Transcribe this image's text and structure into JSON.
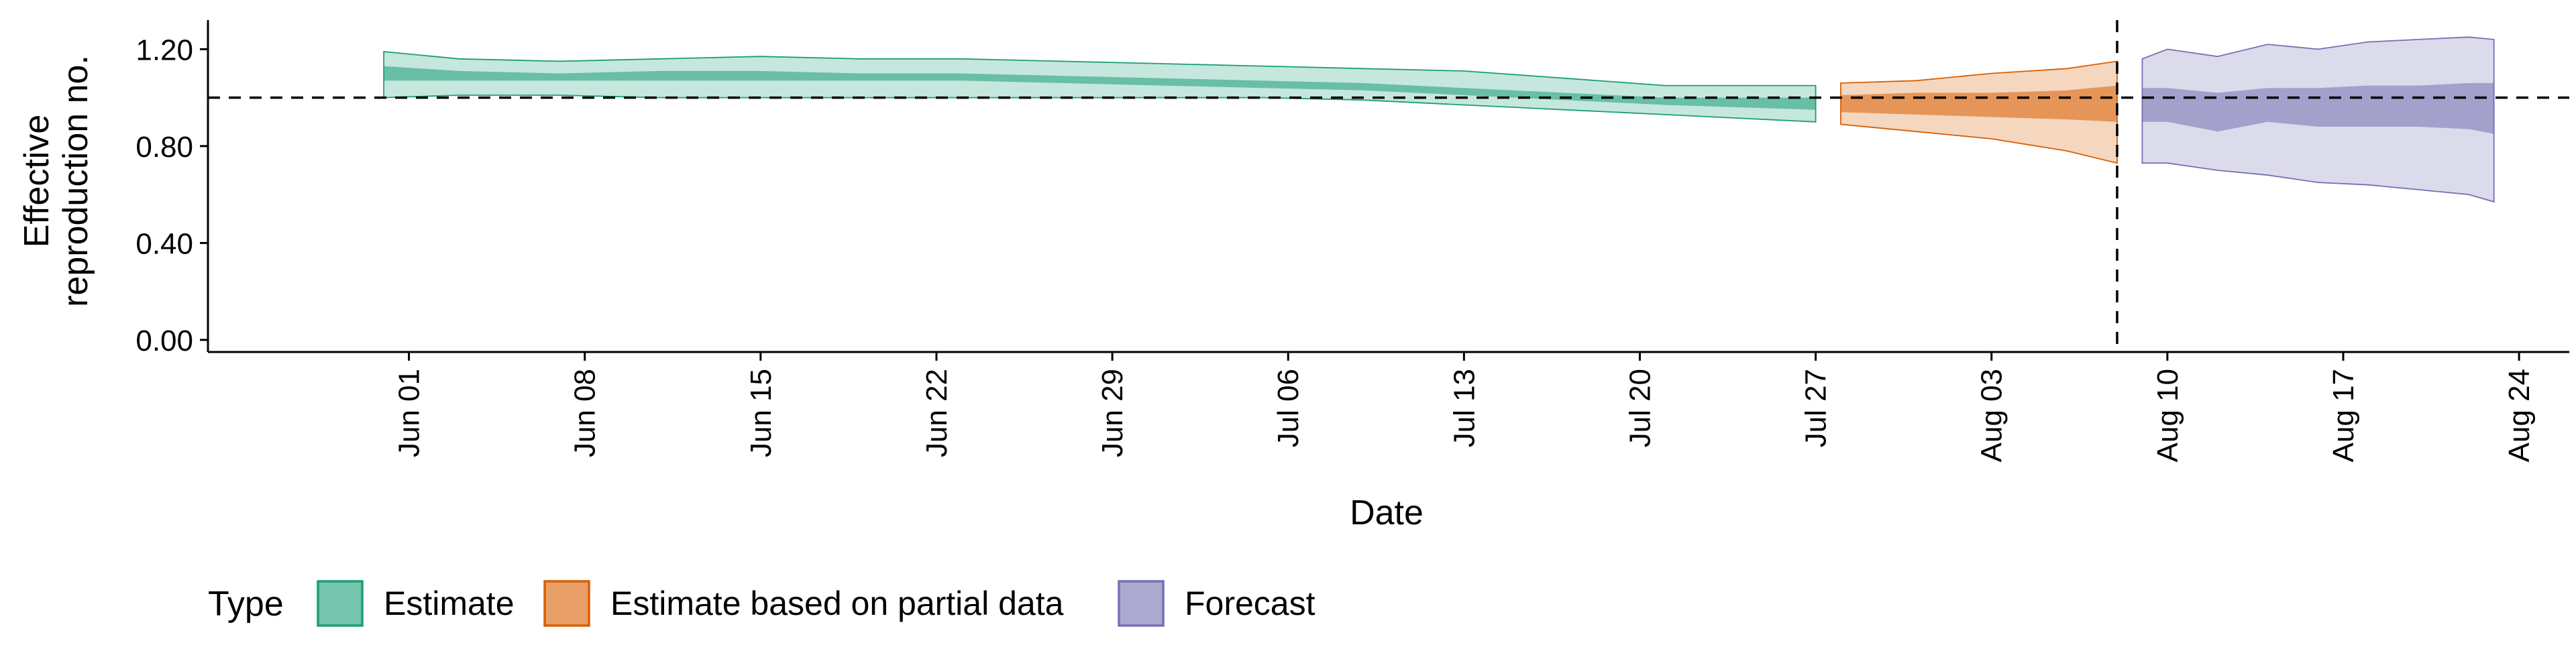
{
  "chart_data": {
    "type": "area",
    "title": "",
    "xlabel": "Date",
    "ylabel_lines": [
      "Effective",
      "reproduction no."
    ],
    "ylim": [
      -0.05,
      1.32
    ],
    "yticks": [
      {
        "value": 0.0,
        "label": "0.00"
      },
      {
        "value": 0.4,
        "label": "0.40"
      },
      {
        "value": 0.8,
        "label": "0.80"
      },
      {
        "value": 1.2,
        "label": "1.20"
      }
    ],
    "xlim": [
      "2020-05-24",
      "2020-08-26"
    ],
    "xticks": [
      {
        "date": "2020-06-01",
        "label": "Jun 01"
      },
      {
        "date": "2020-06-08",
        "label": "Jun 08"
      },
      {
        "date": "2020-06-15",
        "label": "Jun 15"
      },
      {
        "date": "2020-06-22",
        "label": "Jun 22"
      },
      {
        "date": "2020-06-29",
        "label": "Jun 29"
      },
      {
        "date": "2020-07-06",
        "label": "Jul 06"
      },
      {
        "date": "2020-07-13",
        "label": "Jul 13"
      },
      {
        "date": "2020-07-20",
        "label": "Jul 20"
      },
      {
        "date": "2020-07-27",
        "label": "Jul 27"
      },
      {
        "date": "2020-08-03",
        "label": "Aug 03"
      },
      {
        "date": "2020-08-10",
        "label": "Aug 10"
      },
      {
        "date": "2020-08-17",
        "label": "Aug 17"
      },
      {
        "date": "2020-08-24",
        "label": "Aug 24"
      }
    ],
    "reference_line_y": 1.0,
    "reference_line_date": "2020-08-08",
    "grid": false,
    "legend": {
      "position": "bottom-left",
      "title": "Type",
      "entries": [
        "Estimate",
        "Estimate based on partial data",
        "Forecast"
      ]
    },
    "series": [
      {
        "name": "Estimate",
        "fill": "#1B9E77",
        "stroke": "#1B9E77",
        "dates": [
          "2020-05-31",
          "2020-06-03",
          "2020-06-07",
          "2020-06-11",
          "2020-06-15",
          "2020-06-19",
          "2020-06-23",
          "2020-06-27",
          "2020-07-01",
          "2020-07-05",
          "2020-07-09",
          "2020-07-13",
          "2020-07-17",
          "2020-07-21",
          "2020-07-27"
        ],
        "lower90": [
          1.0,
          1.01,
          1.01,
          1.0,
          1.0,
          1.0,
          1.0,
          1.0,
          1.0,
          1.0,
          0.99,
          0.97,
          0.95,
          0.93,
          0.9
        ],
        "lower50": [
          1.07,
          1.07,
          1.07,
          1.07,
          1.07,
          1.07,
          1.07,
          1.06,
          1.05,
          1.04,
          1.03,
          1.01,
          0.99,
          0.97,
          0.95
        ],
        "upper50": [
          1.13,
          1.11,
          1.1,
          1.11,
          1.11,
          1.1,
          1.1,
          1.09,
          1.08,
          1.07,
          1.06,
          1.04,
          1.02,
          1.0,
          1.0
        ],
        "upper90": [
          1.19,
          1.16,
          1.15,
          1.16,
          1.17,
          1.16,
          1.16,
          1.15,
          1.14,
          1.13,
          1.12,
          1.11,
          1.08,
          1.05,
          1.05
        ]
      },
      {
        "name": "Estimate based on partial data",
        "fill": "#D95F02",
        "stroke": "#D95F02",
        "dates": [
          "2020-07-28",
          "2020-07-31",
          "2020-08-03",
          "2020-08-06",
          "2020-08-08"
        ],
        "lower90": [
          0.89,
          0.86,
          0.83,
          0.78,
          0.73
        ],
        "lower50": [
          0.94,
          0.93,
          0.92,
          0.91,
          0.9
        ],
        "upper50": [
          1.01,
          1.02,
          1.02,
          1.03,
          1.05
        ],
        "upper90": [
          1.06,
          1.07,
          1.1,
          1.12,
          1.15
        ]
      },
      {
        "name": "Forecast",
        "fill": "#7570B3",
        "stroke": "#7570B3",
        "dates": [
          "2020-08-09",
          "2020-08-10",
          "2020-08-12",
          "2020-08-14",
          "2020-08-16",
          "2020-08-18",
          "2020-08-20",
          "2020-08-22",
          "2020-08-23"
        ],
        "lower90": [
          0.73,
          0.73,
          0.7,
          0.68,
          0.65,
          0.64,
          0.62,
          0.6,
          0.57
        ],
        "lower50": [
          0.9,
          0.9,
          0.86,
          0.9,
          0.88,
          0.88,
          0.88,
          0.87,
          0.85
        ],
        "upper50": [
          1.04,
          1.04,
          1.02,
          1.04,
          1.04,
          1.05,
          1.05,
          1.06,
          1.06
        ],
        "upper90": [
          1.16,
          1.2,
          1.17,
          1.22,
          1.2,
          1.23,
          1.24,
          1.25,
          1.24
        ]
      }
    ]
  }
}
